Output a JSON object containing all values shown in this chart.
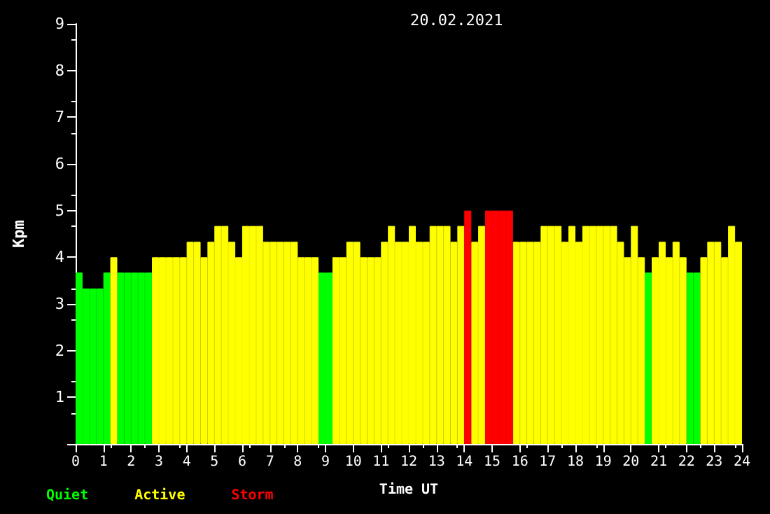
{
  "chart_data": {
    "type": "bar",
    "title": "20.02.2021",
    "xlabel": "Time UT",
    "ylabel": "Kpm",
    "x": [
      0.125,
      0.375,
      0.625,
      0.875,
      1.125,
      1.375,
      1.625,
      1.875,
      2.125,
      2.375,
      2.625,
      2.875,
      3.125,
      3.375,
      3.625,
      3.875,
      4.125,
      4.375,
      4.625,
      4.875,
      5.125,
      5.375,
      5.625,
      5.875,
      6.125,
      6.375,
      6.625,
      6.875,
      7.125,
      7.375,
      7.625,
      7.875,
      8.125,
      8.375,
      8.625,
      8.875,
      9.125,
      9.375,
      9.625,
      9.875,
      10.125,
      10.375,
      10.625,
      10.875,
      11.125,
      11.375,
      11.625,
      11.875,
      12.125,
      12.375,
      12.625,
      12.875,
      13.125,
      13.375,
      13.625,
      13.875,
      14.125,
      14.375,
      14.625,
      14.875,
      15.125,
      15.375,
      15.625,
      15.875,
      16.125,
      16.375,
      16.625,
      16.875,
      17.125,
      17.375,
      17.625,
      17.875,
      18.125,
      18.375,
      18.625,
      18.875,
      19.125,
      19.375,
      19.625,
      19.875,
      20.125,
      20.375,
      20.625,
      20.875,
      21.125,
      21.375,
      21.625,
      21.875,
      22.125,
      22.375,
      22.625,
      22.875,
      23.125,
      23.375,
      23.625,
      23.875
    ],
    "series": [
      {
        "name": "Quiet",
        "color": "#00ff00",
        "values": [
          3.67,
          3.33,
          3.33,
          3.33,
          3.67,
          null,
          3.67,
          3.67,
          3.67,
          3.67,
          3.67,
          null,
          null,
          null,
          null,
          null,
          null,
          null,
          null,
          null,
          null,
          null,
          null,
          null,
          null,
          null,
          null,
          null,
          null,
          null,
          null,
          null,
          null,
          null,
          null,
          3.67,
          3.67,
          null,
          null,
          null,
          null,
          null,
          null,
          null,
          null,
          null,
          null,
          null,
          null,
          null,
          null,
          null,
          null,
          null,
          null,
          null,
          null,
          null,
          null,
          null,
          null,
          null,
          null,
          null,
          null,
          null,
          null,
          null,
          null,
          null,
          null,
          null,
          null,
          null,
          null,
          null,
          null,
          null,
          null,
          null,
          null,
          null,
          3.67,
          null,
          null,
          null,
          null,
          null,
          3.67,
          3.67,
          null,
          null,
          null,
          null,
          null,
          null
        ]
      },
      {
        "name": "Active",
        "color": "#ffff00",
        "values": [
          null,
          null,
          null,
          null,
          null,
          4,
          null,
          null,
          null,
          null,
          null,
          4,
          4,
          4,
          4,
          4,
          4.33,
          4.33,
          4,
          4.33,
          4.67,
          4.67,
          4.33,
          4,
          4.67,
          4.67,
          4.67,
          4.33,
          4.33,
          4.33,
          4.33,
          4.33,
          4,
          4,
          4,
          null,
          null,
          4,
          4,
          4.33,
          4.33,
          4,
          4,
          4,
          4.33,
          4.67,
          4.33,
          4.33,
          4.67,
          4.33,
          4.33,
          4.67,
          4.67,
          4.67,
          4.33,
          4.67,
          null,
          4.33,
          4.67,
          null,
          null,
          null,
          null,
          4.33,
          4.33,
          4.33,
          4.33,
          4.67,
          4.67,
          4.67,
          4.33,
          4.67,
          4.33,
          4.67,
          4.67,
          4.67,
          4.67,
          4.67,
          4.33,
          4,
          4.67,
          4,
          null,
          4,
          4.33,
          4,
          4.33,
          4,
          null,
          null,
          4,
          4.33,
          4.33,
          4,
          4.67,
          4.33
        ]
      },
      {
        "name": "Storm",
        "color": "#ff0000",
        "values": [
          null,
          null,
          null,
          null,
          null,
          null,
          null,
          null,
          null,
          null,
          null,
          null,
          null,
          null,
          null,
          null,
          null,
          null,
          null,
          null,
          null,
          null,
          null,
          null,
          null,
          null,
          null,
          null,
          null,
          null,
          null,
          null,
          null,
          null,
          null,
          null,
          null,
          null,
          null,
          null,
          null,
          null,
          null,
          null,
          null,
          null,
          null,
          null,
          null,
          null,
          null,
          null,
          null,
          null,
          null,
          null,
          5,
          null,
          null,
          5,
          5,
          5,
          5,
          null,
          null,
          null,
          null,
          null,
          null,
          null,
          null,
          null,
          null,
          null,
          null,
          null,
          null,
          null,
          null,
          null,
          null,
          null,
          null,
          null,
          null,
          null,
          null,
          null,
          null,
          null,
          null,
          null,
          null,
          null,
          null,
          null
        ]
      }
    ],
    "xlim": [
      0,
      24
    ],
    "xticks": [
      0,
      1,
      2,
      3,
      4,
      5,
      6,
      7,
      8,
      9,
      10,
      11,
      12,
      13,
      14,
      15,
      16,
      17,
      18,
      19,
      20,
      21,
      22,
      23,
      24
    ],
    "ylim": [
      0,
      9
    ],
    "yticks": [
      {
        "value": 0,
        "label": null
      },
      1,
      2,
      3,
      4,
      5,
      6,
      7,
      8,
      9
    ],
    "legend": "bottom left"
  }
}
